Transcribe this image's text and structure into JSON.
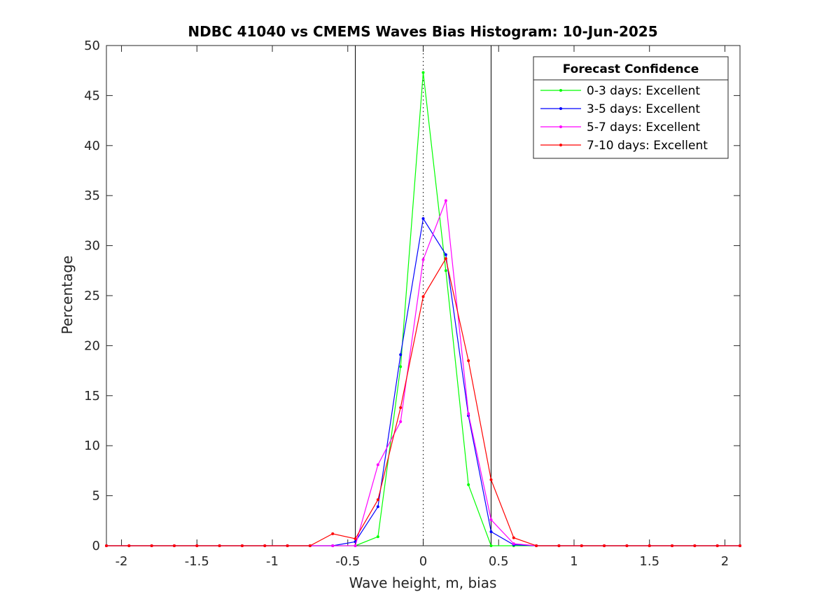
{
  "chart_data": {
    "type": "line",
    "title": "NDBC 41040 vs CMEMS Waves Bias Histogram: 10-Jun-2025",
    "xlabel": "Wave height, m, bias",
    "ylabel": "Percentage",
    "xlim": [
      -2.1,
      2.1
    ],
    "ylim": [
      0,
      50
    ],
    "xticks": [
      -2,
      -1.5,
      -1,
      -0.5,
      0,
      0.5,
      1,
      1.5,
      2
    ],
    "xtick_labels": [
      "-2",
      "-1.5",
      "-1",
      "-0.5",
      "0",
      "0.5",
      "1",
      "1.5",
      "2"
    ],
    "yticks": [
      0,
      5,
      10,
      15,
      20,
      25,
      30,
      35,
      40,
      45,
      50
    ],
    "ytick_labels": [
      "0",
      "5",
      "10",
      "15",
      "20",
      "25",
      "30",
      "35",
      "40",
      "45",
      "50"
    ],
    "vertical_lines": [
      {
        "x": -0.45,
        "style": "solid",
        "color": "#000000"
      },
      {
        "x": 0,
        "style": "dotted",
        "color": "#000000"
      },
      {
        "x": 0.45,
        "style": "solid",
        "color": "#000000"
      }
    ],
    "grid": false,
    "legend_title": "Forecast Confidence",
    "legend_position": "top-right",
    "x": [
      -2.1,
      -1.95,
      -1.8,
      -1.65,
      -1.5,
      -1.35,
      -1.2,
      -1.05,
      -0.9,
      -0.75,
      -0.6,
      -0.45,
      -0.3,
      -0.15,
      0,
      0.15,
      0.3,
      0.45,
      0.6,
      0.75,
      0.9,
      1.05,
      1.2,
      1.35,
      1.5,
      1.65,
      1.8,
      1.95,
      2.1
    ],
    "series": [
      {
        "name": "0-3 days: Excellent",
        "color": "#00ff00",
        "values": [
          0,
          0,
          0,
          0,
          0,
          0,
          0,
          0,
          0,
          0,
          0,
          0,
          0.9,
          17.9,
          47.3,
          27.5,
          6.1,
          0,
          0,
          0,
          0,
          0,
          0,
          0,
          0,
          0,
          0,
          0,
          0
        ]
      },
      {
        "name": "3-5 days: Excellent",
        "color": "#0000ff",
        "values": [
          0,
          0,
          0,
          0,
          0,
          0,
          0,
          0,
          0,
          0,
          0,
          0.4,
          3.9,
          19.1,
          32.7,
          29.1,
          13.0,
          1.4,
          0.1,
          0,
          0,
          0,
          0,
          0,
          0,
          0,
          0,
          0,
          0
        ]
      },
      {
        "name": "5-7 days: Excellent",
        "color": "#ff00ff",
        "values": [
          0,
          0,
          0,
          0,
          0,
          0,
          0,
          0,
          0,
          0,
          0,
          0,
          8.1,
          12.4,
          28.6,
          34.5,
          13.2,
          2.6,
          0.2,
          0,
          0,
          0,
          0,
          0,
          0,
          0,
          0,
          0,
          0
        ]
      },
      {
        "name": "7-10 days: Excellent",
        "color": "#ff0000",
        "values": [
          0,
          0,
          0,
          0,
          0,
          0,
          0,
          0,
          0,
          0,
          1.2,
          0.7,
          4.6,
          13.8,
          24.9,
          28.7,
          18.5,
          6.6,
          0.8,
          0,
          0,
          0,
          0,
          0,
          0,
          0,
          0,
          0,
          0
        ]
      }
    ]
  }
}
